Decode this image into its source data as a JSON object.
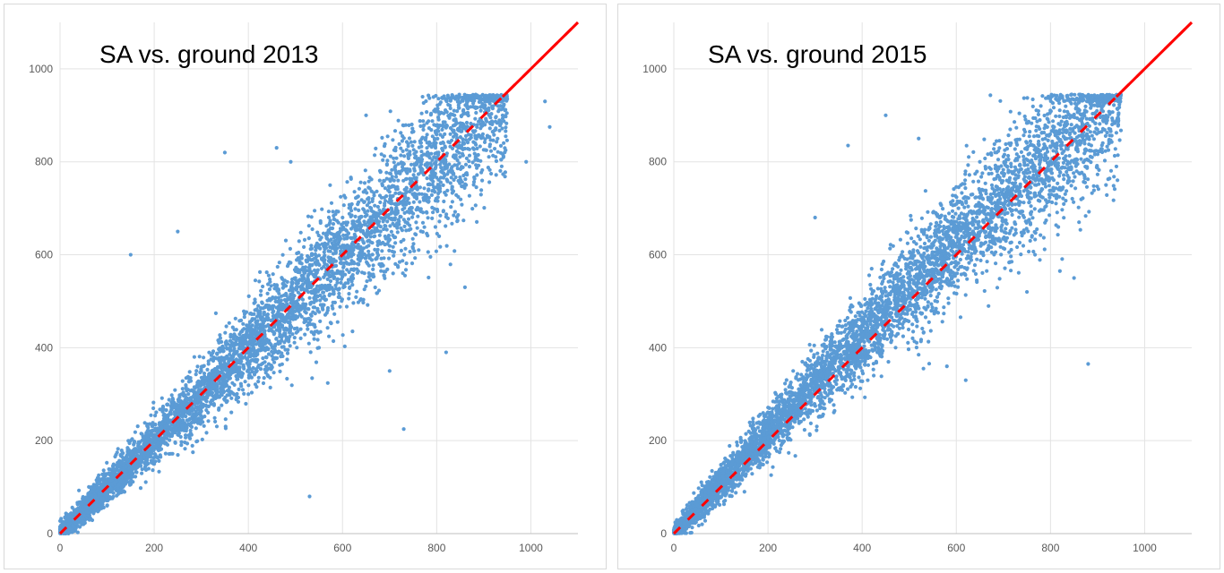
{
  "chart_data": [
    {
      "type": "scatter",
      "title": "SA vs. ground 2013",
      "xlabel": "",
      "ylabel": "",
      "xlim": [
        0,
        1100
      ],
      "ylim": [
        0,
        1100
      ],
      "x_ticks": [
        "0",
        "200",
        "400",
        "600",
        "800",
        "1000"
      ],
      "y_ticks": [
        "0",
        "200",
        "400",
        "600",
        "800",
        "1000"
      ],
      "grid": true,
      "series": [
        {
          "color": "#5b9bd5",
          "description": "~6000 dense scattered points concentrated along y=x, spread grows with x up to ~900",
          "points": [
            [
              5,
              10
            ],
            [
              20,
              40
            ],
            [
              50,
              25
            ],
            [
              80,
              120
            ],
            [
              100,
              60
            ],
            [
              150,
              600
            ],
            [
              150,
              200
            ],
            [
              200,
              150
            ],
            [
              250,
              650
            ],
            [
              300,
              350
            ],
            [
              350,
              820
            ],
            [
              400,
              300
            ],
            [
              460,
              830
            ],
            [
              490,
              800
            ],
            [
              500,
              550
            ],
            [
              530,
              80
            ],
            [
              550,
              400
            ],
            [
              600,
              620
            ],
            [
              650,
              900
            ],
            [
              700,
              350
            ],
            [
              730,
              225
            ],
            [
              770,
              940
            ],
            [
              820,
              390
            ],
            [
              860,
              530
            ],
            [
              900,
              920
            ],
            [
              930,
              935
            ],
            [
              990,
              800
            ],
            [
              1030,
              930
            ],
            [
              1040,
              875
            ]
          ]
        },
        {
          "name": "",
          "type": "line",
          "color": "#ff0000",
          "x": [
            0,
            1100
          ],
          "y": [
            0,
            1100
          ]
        }
      ]
    },
    {
      "type": "scatter",
      "title": "SA vs. ground 2015",
      "xlabel": "",
      "ylabel": "",
      "xlim": [
        0,
        1100
      ],
      "ylim": [
        0,
        1100
      ],
      "x_ticks": [
        "0",
        "200",
        "400",
        "600",
        "800",
        "1000"
      ],
      "y_ticks": [
        "0",
        "200",
        "400",
        "600",
        "800",
        "1000"
      ],
      "grid": true,
      "series": [
        {
          "color": "#5b9bd5",
          "description": "~6000 dense scattered points concentrated along y=x, slightly above the line at mid-range",
          "points": [
            [
              5,
              10
            ],
            [
              20,
              50
            ],
            [
              60,
              20
            ],
            [
              100,
              140
            ],
            [
              150,
              90
            ],
            [
              200,
              250
            ],
            [
              300,
              680
            ],
            [
              370,
              835
            ],
            [
              400,
              350
            ],
            [
              450,
              900
            ],
            [
              500,
              560
            ],
            [
              520,
              850
            ],
            [
              580,
              360
            ],
            [
              620,
              330
            ],
            [
              650,
              800
            ],
            [
              700,
              740
            ],
            [
              750,
              520
            ],
            [
              820,
              565
            ],
            [
              850,
              550
            ],
            [
              880,
              365
            ],
            [
              900,
              920
            ],
            [
              930,
              940
            ],
            [
              940,
              790
            ]
          ]
        },
        {
          "name": "",
          "type": "line",
          "color": "#ff0000",
          "x": [
            0,
            1100
          ],
          "y": [
            0,
            1100
          ]
        }
      ]
    }
  ]
}
